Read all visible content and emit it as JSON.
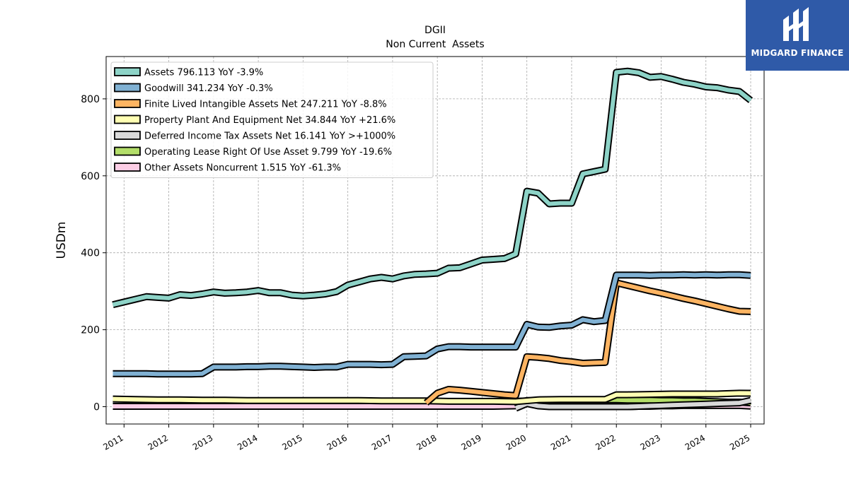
{
  "brand": {
    "name": "MIDGARD FINANCE",
    "bg": "#2f5aa8"
  },
  "chart_data": {
    "type": "line",
    "title": "DGII",
    "subtitle": "Non Current  Assets",
    "ylabel": "USDm",
    "xlabel": "",
    "xlim": [
      2010.6,
      2025.3
    ],
    "ylim": [
      -45,
      910
    ],
    "yticks": [
      0,
      200,
      400,
      600,
      800
    ],
    "xticks": [
      2011,
      2012,
      2013,
      2014,
      2015,
      2016,
      2017,
      2018,
      2019,
      2020,
      2021,
      2022,
      2023,
      2024,
      2025
    ],
    "grid": true,
    "legend_position": "top-left",
    "series": [
      {
        "name": "Assets  796.113 YoY -3.9%",
        "color": "#8dd3c7",
        "x": [
          2010.75,
          2011,
          2011.25,
          2011.5,
          2011.75,
          2012,
          2012.25,
          2012.5,
          2012.75,
          2013,
          2013.25,
          2013.5,
          2013.75,
          2014,
          2014.25,
          2014.5,
          2014.75,
          2015,
          2015.25,
          2015.5,
          2015.75,
          2016,
          2016.25,
          2016.5,
          2016.75,
          2017,
          2017.25,
          2017.5,
          2017.75,
          2018,
          2018.25,
          2018.5,
          2018.75,
          2019,
          2019.25,
          2019.5,
          2019.75,
          2020,
          2020.25,
          2020.5,
          2020.75,
          2021,
          2021.25,
          2021.5,
          2021.75,
          2022,
          2022.25,
          2022.5,
          2022.75,
          2023,
          2023.25,
          2023.5,
          2023.75,
          2024,
          2024.25,
          2024.5,
          2024.75,
          2025
        ],
        "y": [
          265,
          272,
          279,
          286,
          284,
          282,
          291,
          289,
          293,
          298,
          295,
          296,
          298,
          302,
          296,
          296,
          290,
          288,
          290,
          293,
          299,
          316,
          324,
          332,
          336,
          332,
          340,
          344,
          345,
          347,
          360,
          361,
          371,
          381,
          383,
          385,
          397,
          560,
          555,
          527,
          529,
          529,
          605,
          611,
          617,
          869,
          872,
          868,
          856,
          858,
          851,
          843,
          838,
          831,
          829,
          823,
          819,
          796.113
        ]
      },
      {
        "name": "Goodwill  341.234 YoY -0.3%",
        "color": "#80b1d3",
        "x": [
          2010.75,
          2011,
          2011.25,
          2011.5,
          2011.75,
          2012,
          2012.25,
          2012.5,
          2012.75,
          2013,
          2013.25,
          2013.5,
          2013.75,
          2014,
          2014.25,
          2014.5,
          2014.75,
          2015,
          2015.25,
          2015.5,
          2015.75,
          2016,
          2016.25,
          2016.5,
          2016.75,
          2017,
          2017.25,
          2017.5,
          2017.75,
          2018,
          2018.25,
          2018.5,
          2018.75,
          2019,
          2019.25,
          2019.5,
          2019.75,
          2020,
          2020.25,
          2020.5,
          2020.75,
          2021,
          2021.25,
          2021.5,
          2021.75,
          2022,
          2022.25,
          2022.5,
          2022.75,
          2023,
          2023.25,
          2023.5,
          2023.75,
          2024,
          2024.25,
          2024.5,
          2024.75,
          2025
        ],
        "y": [
          86,
          86,
          86,
          86,
          85,
          85,
          85,
          85,
          86,
          103,
          103,
          103,
          104,
          104,
          105,
          105,
          104,
          103,
          102,
          103,
          103,
          110,
          110,
          110,
          109,
          110,
          130,
          131,
          132,
          150,
          156,
          156,
          155,
          155,
          155,
          155,
          155,
          214,
          207,
          206,
          210,
          212,
          226,
          221,
          224,
          342,
          342,
          342,
          341,
          342,
          342,
          343,
          342,
          343,
          342,
          343,
          343,
          341.234
        ]
      },
      {
        "name": "Finite Lived Intangible Assets Net  247.211 YoY -8.8%",
        "color": "#fdb462",
        "x": [
          2017.75,
          2018,
          2018.25,
          2018.5,
          2018.75,
          2019,
          2019.25,
          2019.5,
          2019.75,
          2020,
          2020.25,
          2020.5,
          2020.75,
          2021,
          2021.25,
          2021.5,
          2021.75,
          2022,
          2022.25,
          2022.5,
          2022.75,
          2023,
          2023.25,
          2023.5,
          2023.75,
          2024,
          2024.25,
          2024.5,
          2024.75,
          2025
        ],
        "y": [
          10,
          35,
          45,
          43,
          40,
          37,
          34,
          31,
          29,
          130,
          128,
          125,
          120,
          117,
          113,
          114,
          115,
          322,
          315,
          308,
          301,
          295,
          288,
          281,
          275,
          268,
          261,
          254,
          248,
          247.211
        ]
      },
      {
        "name": "Property Plant And Equipment Net  34.844 YoY +21.6%",
        "color": "#ffffb3",
        "x": [
          2010.75,
          2011.25,
          2011.75,
          2012.25,
          2012.75,
          2013.25,
          2013.75,
          2014.25,
          2014.75,
          2015.25,
          2015.75,
          2016.25,
          2016.75,
          2017.25,
          2017.75,
          2018.25,
          2018.75,
          2019.25,
          2019.75,
          2020.25,
          2020.75,
          2021.25,
          2021.75,
          2022,
          2022.25,
          2022.75,
          2023.25,
          2023.75,
          2024.25,
          2024.75,
          2025
        ],
        "y": [
          20,
          19,
          18,
          18,
          17,
          17,
          16,
          16,
          16,
          16,
          16,
          16,
          15,
          15,
          15,
          14,
          14,
          14,
          13,
          18,
          19,
          19,
          19,
          31,
          31,
          32,
          33,
          33,
          33,
          35,
          34.844
        ]
      },
      {
        "name": "Deferred Income Tax Assets Net  16.141 YoY >+1000%",
        "color": "#d9d9d9",
        "x": [
          2019.75,
          2020,
          2020.25,
          2020.5,
          2020.75,
          2021,
          2021.25,
          2021.5,
          2021.75,
          2022,
          2022.25,
          2022.5,
          2022.75,
          2023,
          2023.25,
          2023.5,
          2023.75,
          2024,
          2024.25,
          2024.5,
          2024.75,
          2025
        ],
        "y": [
          -4,
          8,
          2,
          0,
          0,
          0,
          0,
          0,
          0,
          0,
          0,
          1,
          2,
          3,
          4,
          5,
          6,
          7,
          8,
          9,
          10,
          16.141
        ]
      },
      {
        "name": "Operating Lease Right Of Use Asset  9.799 YoY -19.6%",
        "color": "#b3de69",
        "x": [
          2019.75,
          2020,
          2020.25,
          2020.5,
          2020.75,
          2021,
          2021.25,
          2021.5,
          2021.75,
          2022,
          2022.25,
          2022.5,
          2022.75,
          2023,
          2023.25,
          2023.5,
          2023.75,
          2024,
          2024.25,
          2024.5,
          2024.75,
          2025
        ],
        "y": [
          14,
          15,
          15,
          15,
          16,
          18,
          18,
          18,
          18,
          18,
          17,
          17,
          17,
          16,
          16,
          15,
          15,
          14,
          13,
          12,
          12,
          9.799
        ]
      },
      {
        "name": "Other Assets Noncurrent  1.515 YoY -61.3%",
        "color": "#fccde5",
        "x": [
          2010.75,
          2011.25,
          2011.75,
          2012.25,
          2012.75,
          2013.25,
          2013.75,
          2014.25,
          2014.75,
          2015.25,
          2015.75,
          2016.25,
          2016.75,
          2017.25,
          2017.75,
          2018.25,
          2018.75,
          2019.25,
          2019.75,
          2020,
          2020.25,
          2020.5,
          2020.75,
          2021,
          2021.25,
          2021.5,
          2021.75,
          2022,
          2022.25,
          2022.5,
          2022.75,
          2023,
          2023.25,
          2023.5,
          2023.75,
          2024,
          2024.25,
          2024.5,
          2024.75,
          2025
        ],
        "y": [
          1,
          1,
          1,
          1,
          1,
          1,
          1,
          1,
          1,
          1,
          1,
          1,
          1,
          1,
          1,
          1,
          1,
          1,
          2,
          16,
          15,
          1,
          1,
          1,
          0,
          0,
          0,
          0,
          0,
          1,
          1,
          2,
          2,
          3,
          3,
          3,
          3,
          3,
          3,
          1.515
        ]
      }
    ]
  }
}
